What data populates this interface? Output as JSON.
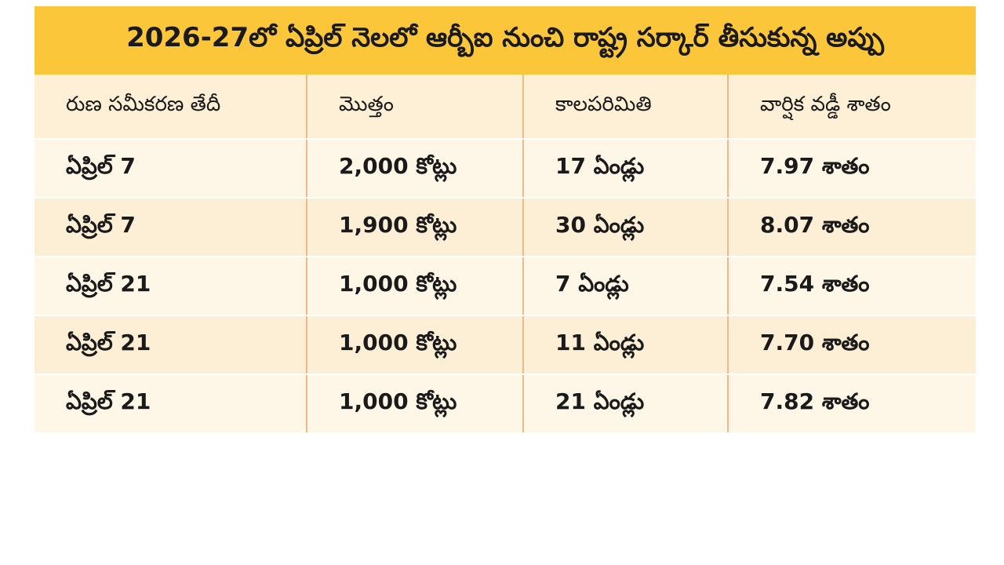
{
  "header": {
    "title": "2026-27లో ఏప్రిల్ నెలలో ఆర్బీఐ నుంచి రాష్ట్ర సర్కార్ తీసుకున్న అప్పు"
  },
  "table": {
    "columns": [
      "రుణ సమీకరణ తేదీ",
      "మొత్తం",
      "కాలపరిమితి",
      "వార్షిక వడ్డీ శాతం"
    ],
    "rows": [
      [
        "ఏప్రిల్ 7",
        "2,000 కోట్లు",
        "17 ఏండ్లు",
        "7.97 శాతం"
      ],
      [
        "ఏప్రిల్ 7",
        "1,900 కోట్లు",
        "30 ఏండ్లు",
        "8.07 శాతం"
      ],
      [
        "ఏప్రిల్ 21",
        "1,000 కోట్లు",
        "7 ఏండ్లు",
        "7.54 శాతం"
      ],
      [
        "ఏప్రిల్ 21",
        "1,000 కోట్లు",
        "11 ఏండ్లు",
        "7.70 శాతం"
      ],
      [
        "ఏప్రిల్ 21",
        "1,000 కోట్లు",
        "21 ఏండ్లు",
        "7.82 శాతం"
      ]
    ]
  }
}
